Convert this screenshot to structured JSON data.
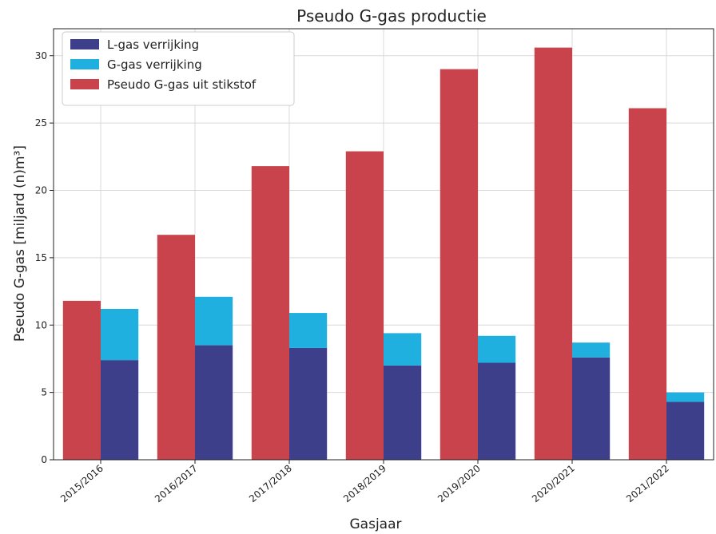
{
  "chart_data": {
    "type": "bar",
    "title": "Pseudo G-gas productie",
    "xlabel": "Gasjaar",
    "ylabel": "Pseudo G-gas [miljard (n)m³]",
    "ylim": [
      0,
      32
    ],
    "yticks": [
      0,
      5,
      10,
      15,
      20,
      25,
      30
    ],
    "grid": true,
    "legend_position": "top-left",
    "categories": [
      "2015/2016",
      "2016/2017",
      "2017/2018",
      "2018/2019",
      "2019/2020",
      "2020/2021",
      "2021/2022"
    ],
    "series": [
      {
        "name": "L-gas verrijking",
        "color": "#3d3f8a",
        "stack": "verrijking",
        "values": [
          7.4,
          8.5,
          8.3,
          7.0,
          7.2,
          7.6,
          4.3
        ]
      },
      {
        "name": "G-gas verrijking",
        "color": "#20b0e0",
        "stack": "verrijking",
        "values": [
          3.8,
          3.6,
          2.6,
          2.4,
          2.0,
          1.1,
          0.7
        ]
      },
      {
        "name": "Pseudo G-gas uit stikstof",
        "color": "#c8434b",
        "stack": "stikstof",
        "values": [
          11.8,
          16.7,
          21.8,
          22.9,
          29.0,
          30.6,
          26.1
        ]
      }
    ]
  }
}
